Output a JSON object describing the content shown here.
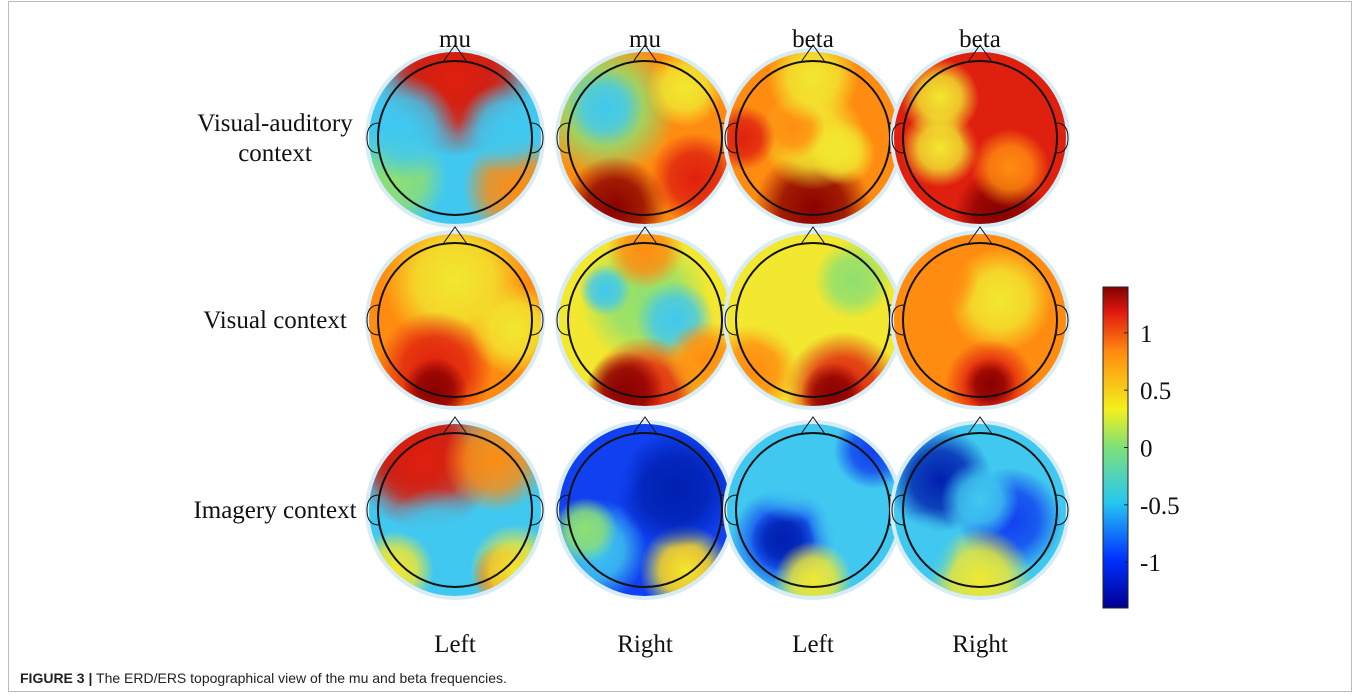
{
  "figure": {
    "column_headers": [
      "mu",
      "mu",
      "beta",
      "beta"
    ],
    "row_labels": [
      [
        "Visual-auditory",
        "context"
      ],
      [
        "Visual context"
      ],
      [
        "Imagery context"
      ]
    ],
    "bottom_labels": [
      "Left",
      "Right",
      "Left",
      "Right"
    ],
    "colorbar": {
      "lim": [
        -1.4,
        1.4
      ],
      "ticks": [
        1,
        0.5,
        0,
        -0.5,
        -1
      ]
    },
    "caption": {
      "label": "FIGURE 3 |",
      "text": "The ERD/ERS topographical view of the mu and beta frequencies."
    }
  }
}
